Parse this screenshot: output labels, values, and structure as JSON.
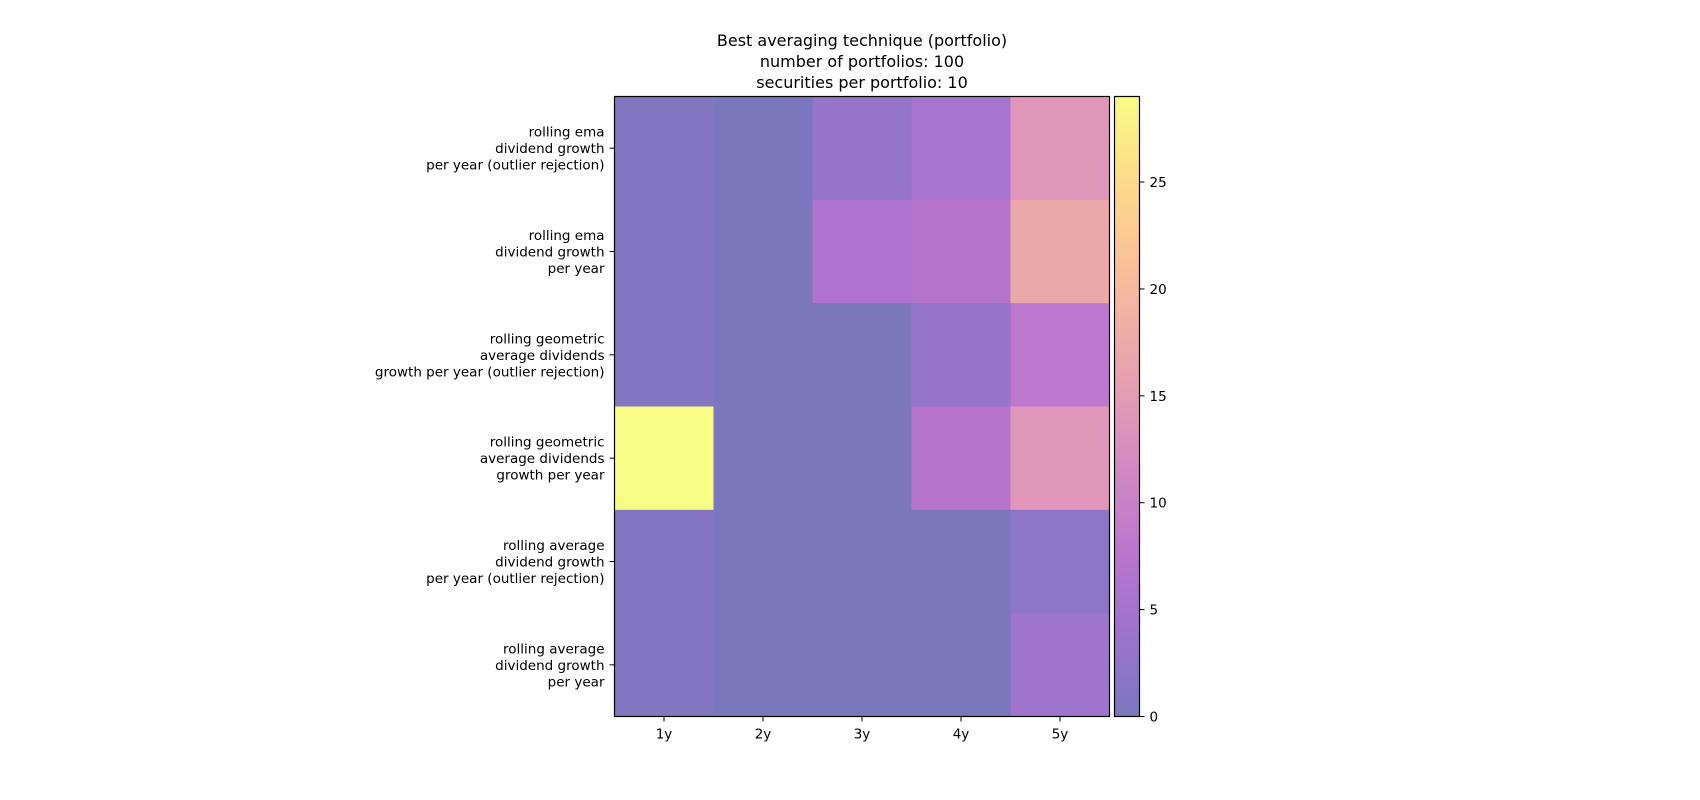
{
  "chart_data": {
    "type": "heatmap",
    "title": [
      "Best averaging technique (portfolio)",
      "number of portfolios: 100",
      "securities per portfolio: 10"
    ],
    "xlabel": "",
    "ylabel": "",
    "x_categories": [
      "1y",
      "2y",
      "3y",
      "4y",
      "5y"
    ],
    "y_categories": [
      [
        "rolling ema",
        "dividend growth",
        "per year (outlier rejection)"
      ],
      [
        "rolling ema",
        "dividend growth",
        "per year"
      ],
      [
        "rolling geometric",
        "average dividends",
        "growth per year (outlier rejection)"
      ],
      [
        "rolling geometric",
        "average dividends",
        "growth per year"
      ],
      [
        "rolling average",
        "dividend growth",
        "per year (outlier rejection)"
      ],
      [
        "rolling average",
        "dividend growth",
        "per year"
      ]
    ],
    "values": [
      [
        1,
        0,
        3,
        5,
        14
      ],
      [
        1,
        0,
        6,
        7,
        17
      ],
      [
        1,
        0,
        0,
        3,
        8
      ],
      [
        29,
        0,
        0,
        7,
        14
      ],
      [
        1,
        0,
        0,
        0,
        2
      ],
      [
        1,
        0,
        0,
        0,
        4
      ]
    ],
    "colorscale": "plasma",
    "alpha": 0.55,
    "vmin": 0,
    "vmax": 29,
    "colorbar_ticks": [
      0,
      5,
      10,
      15,
      20,
      25
    ],
    "grid": false
  }
}
